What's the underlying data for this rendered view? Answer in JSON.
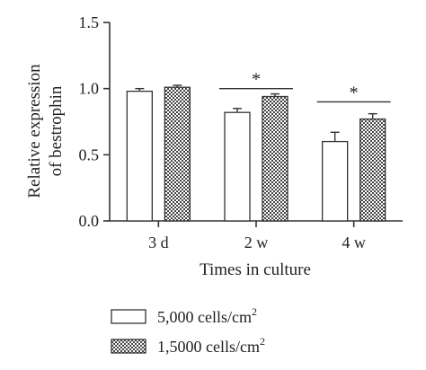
{
  "chart_data": {
    "type": "bar",
    "title": "",
    "xlabel": "Times in culture",
    "ylabel_lines": [
      "Relative expression",
      "of bestrophin"
    ],
    "categories": [
      "3 d",
      "2 w",
      "4 w"
    ],
    "ylim": [
      0,
      1.5
    ],
    "yticks": [
      "0.0",
      "0.5",
      "1.0",
      "1.5"
    ],
    "series": [
      {
        "name": "5,000 cells/cm",
        "superscript": "2",
        "fill": "#ffffff",
        "pattern": "none",
        "values": [
          0.98,
          0.82,
          0.6
        ],
        "errors": [
          0.02,
          0.03,
          0.07
        ]
      },
      {
        "name": "1,5000 cells/cm",
        "superscript": "2",
        "fill": "#555555",
        "pattern": "checker",
        "values": [
          1.01,
          0.94,
          0.77
        ],
        "errors": [
          0.015,
          0.02,
          0.04
        ]
      }
    ],
    "significance": [
      {
        "category": "2 w",
        "label": "*",
        "y": 1.0
      },
      {
        "category": "4 w",
        "label": "*",
        "y": 0.9
      }
    ],
    "legend": "bottom",
    "grid": false
  },
  "colors": {
    "axis": "#333333",
    "text": "#222222"
  }
}
